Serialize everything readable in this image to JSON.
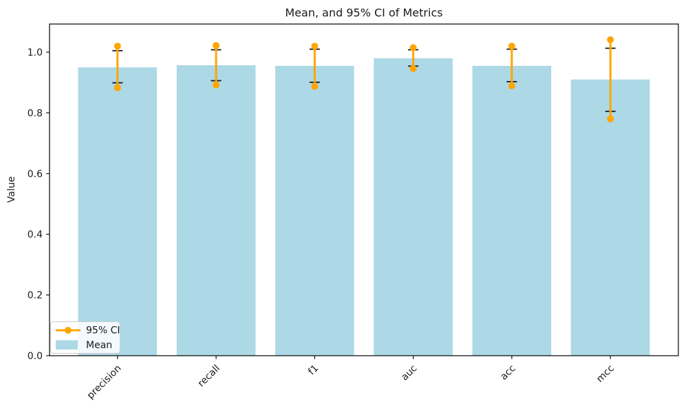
{
  "colors": {
    "bar_fill": "#ADD8E6",
    "ci_line": "#FFA500",
    "cap_line": "#1a1a1a",
    "spine": "#000000",
    "text": "#1a1a1a",
    "legend_border": "#cccccc",
    "legend_bg": "#ffffff"
  },
  "chart_data": {
    "type": "bar",
    "title": "Mean, and 95% CI of Metrics",
    "xlabel": "",
    "ylabel": "Value",
    "categories": [
      "precision",
      "recall",
      "f1",
      "auc",
      "acc",
      "mcc"
    ],
    "series": [
      {
        "name": "Mean",
        "values": [
          0.95,
          0.957,
          0.955,
          0.98,
          0.955,
          0.91
        ]
      }
    ],
    "error_bars": {
      "name": "95% CI",
      "ci_low": [
        0.883,
        0.892,
        0.887,
        0.946,
        0.889,
        0.78
      ],
      "ci_high": [
        1.02,
        1.022,
        1.02,
        1.015,
        1.02,
        1.041
      ],
      "cap_low": [
        0.899,
        0.906,
        0.901,
        0.954,
        0.903,
        0.805
      ],
      "cap_high": [
        1.005,
        1.008,
        1.01,
        1.008,
        1.01,
        1.013
      ]
    },
    "ylim": [
      0,
      1.093
    ],
    "yticks": [
      0.0,
      0.2,
      0.4,
      0.6,
      0.8,
      1.0
    ],
    "grid": false,
    "legend": {
      "position": "lower left",
      "items": [
        {
          "label": "95% CI",
          "swatch": "line-dot",
          "color": "#FFA500"
        },
        {
          "label": "Mean",
          "swatch": "patch",
          "color": "#ADD8E6"
        }
      ]
    }
  }
}
